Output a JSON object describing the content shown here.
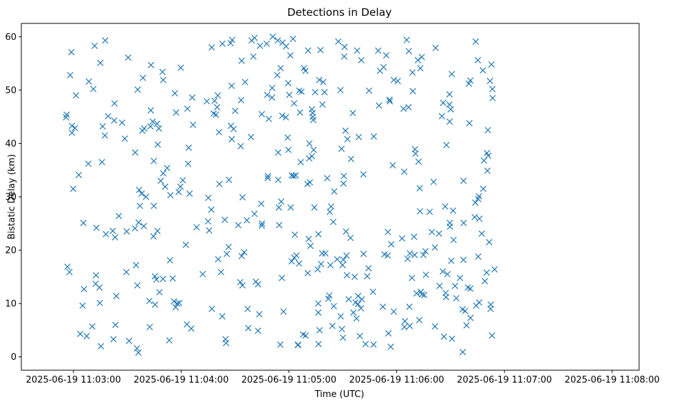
{
  "chart_data": {
    "type": "scatter",
    "title": "Detections in Delay",
    "xlabel": "Time (UTC)",
    "ylabel": "Bistatic Delay (km)",
    "x_unit": "seconds",
    "x_ticks": [
      {
        "value": 0,
        "label": "2025-06-19 11:03:00"
      },
      {
        "value": 60,
        "label": "2025-06-19 11:04:00"
      },
      {
        "value": 120,
        "label": "2025-06-19 11:05:00"
      },
      {
        "value": 180,
        "label": "2025-06-19 11:06:00"
      },
      {
        "value": 240,
        "label": "2025-06-19 11:07:00"
      },
      {
        "value": 300,
        "label": "2025-06-19 11:08:00"
      }
    ],
    "y_ticks": [
      0,
      10,
      20,
      30,
      40,
      50,
      60
    ],
    "xlim": [
      -29,
      315
    ],
    "ylim": [
      -2.5,
      62.5
    ],
    "marker": "x",
    "color": "#1f77b4",
    "grid": false,
    "points": [
      [
        -4.1,
        44.9
      ],
      [
        -3.8,
        45.4
      ],
      [
        -3.3,
        16.9
      ],
      [
        -2.2,
        15.9
      ],
      [
        -1.8,
        52.8
      ],
      [
        -1.1,
        57.1
      ],
      [
        -0.8,
        42.0
      ],
      [
        -0.8,
        43.3
      ],
      [
        -0.1,
        31.5
      ],
      [
        0.9,
        42.9
      ],
      [
        1.4,
        49.0
      ],
      [
        3.0,
        34.1
      ],
      [
        3.8,
        4.3
      ],
      [
        5.1,
        9.6
      ],
      [
        5.6,
        25.1
      ],
      [
        5.9,
        12.7
      ],
      [
        7.4,
        3.9
      ],
      [
        8.3,
        36.2
      ],
      [
        8.6,
        51.6
      ],
      [
        10.5,
        5.7
      ],
      [
        11.1,
        50.2
      ],
      [
        11.8,
        58.3
      ],
      [
        12.4,
        13.7
      ],
      [
        12.6,
        15.3
      ],
      [
        12.8,
        24.2
      ],
      [
        14.5,
        13.0
      ],
      [
        14.7,
        10.1
      ],
      [
        15.0,
        55.1
      ],
      [
        15.3,
        2.0
      ],
      [
        15.9,
        36.5
      ],
      [
        16.3,
        43.2
      ],
      [
        17.5,
        41.5
      ],
      [
        17.7,
        59.3
      ],
      [
        18.1,
        23.0
      ],
      [
        19.3,
        45.1
      ],
      [
        21.9,
        23.6
      ],
      [
        22.3,
        3.3
      ],
      [
        22.7,
        44.3
      ],
      [
        22.9,
        47.5
      ],
      [
        23.2,
        22.4
      ],
      [
        23.4,
        6.0
      ],
      [
        23.9,
        11.4
      ],
      [
        25.3,
        26.4
      ],
      [
        27.1,
        43.9
      ],
      [
        28.6,
        40.9
      ],
      [
        29.5,
        15.9
      ],
      [
        29.7,
        23.5
      ],
      [
        30.5,
        56.1
      ],
      [
        31.0,
        3.0
      ],
      [
        34.3,
        24.1
      ],
      [
        34.4,
        38.3
      ],
      [
        34.9,
        17.2
      ],
      [
        35.4,
        1.6
      ],
      [
        35.6,
        13.4
      ],
      [
        35.8,
        50.1
      ],
      [
        36.2,
        0.8
      ],
      [
        36.3,
        25.2
      ],
      [
        36.6,
        31.3
      ],
      [
        37.0,
        28.3
      ],
      [
        38.0,
        30.6
      ],
      [
        38.4,
        42.4
      ],
      [
        38.7,
        52.3
      ],
      [
        39.2,
        24.5
      ],
      [
        39.4,
        42.8
      ],
      [
        40.4,
        30.0
      ],
      [
        42.3,
        10.5
      ],
      [
        42.5,
        5.6
      ],
      [
        42.9,
        43.2
      ],
      [
        43.1,
        46.2
      ],
      [
        43.2,
        54.7
      ],
      [
        44.1,
        44.1
      ],
      [
        44.6,
        22.6
      ],
      [
        44.8,
        36.7
      ],
      [
        44.8,
        28.3
      ],
      [
        45.4,
        15.1
      ],
      [
        45.5,
        9.8
      ],
      [
        46.2,
        14.5
      ],
      [
        46.6,
        43.7
      ],
      [
        46.8,
        23.6
      ],
      [
        47.0,
        39.8
      ],
      [
        47.6,
        42.8
      ],
      [
        47.9,
        12.1
      ],
      [
        48.6,
        33.0
      ],
      [
        49.6,
        53.4
      ],
      [
        49.9,
        14.6
      ],
      [
        50.0,
        51.9
      ],
      [
        50.0,
        34.4
      ],
      [
        51.1,
        31.9
      ],
      [
        52.2,
        35.4
      ],
      [
        53.4,
        3.1
      ],
      [
        53.8,
        18.1
      ],
      [
        54.0,
        30.3
      ],
      [
        55.3,
        14.7
      ],
      [
        56.0,
        10.4
      ],
      [
        56.5,
        49.4
      ],
      [
        56.9,
        9.3
      ],
      [
        57.2,
        45.8
      ],
      [
        57.8,
        10.0
      ],
      [
        58.6,
        30.9
      ],
      [
        58.9,
        10.1
      ],
      [
        59.6,
        31.9
      ],
      [
        59.8,
        54.2
      ],
      [
        60.9,
        33.1
      ],
      [
        62.6,
        21.0
      ],
      [
        63.2,
        6.1
      ],
      [
        63.5,
        46.5
      ],
      [
        63.9,
        36.2
      ],
      [
        64.2,
        39.2
      ],
      [
        64.7,
        30.6
      ],
      [
        65.6,
        5.3
      ],
      [
        66.2,
        48.6
      ],
      [
        66.6,
        43.5
      ],
      [
        68.6,
        24.3
      ],
      [
        72.0,
        15.5
      ],
      [
        74.3,
        47.9
      ],
      [
        75.0,
        25.4
      ],
      [
        75.1,
        29.8
      ],
      [
        75.6,
        23.7
      ],
      [
        76.8,
        27.6
      ],
      [
        77.0,
        58.0
      ],
      [
        77.1,
        9.0
      ],
      [
        78.1,
        45.6
      ],
      [
        78.6,
        48.0
      ],
      [
        79.4,
        45.4
      ],
      [
        80.0,
        46.8
      ],
      [
        80.4,
        49.0
      ],
      [
        80.6,
        18.3
      ],
      [
        81.1,
        42.1
      ],
      [
        81.3,
        32.4
      ],
      [
        82.2,
        15.9
      ],
      [
        82.9,
        7.6
      ],
      [
        83.0,
        58.7
      ],
      [
        84.3,
        25.7
      ],
      [
        84.7,
        3.3
      ],
      [
        85.0,
        2.6
      ],
      [
        85.4,
        19.3
      ],
      [
        86.4,
        20.6
      ],
      [
        86.6,
        33.2
      ],
      [
        87.5,
        58.8
      ],
      [
        87.7,
        43.3
      ],
      [
        88.1,
        50.8
      ],
      [
        88.2,
        40.8
      ],
      [
        88.4,
        59.4
      ],
      [
        89.2,
        42.7
      ],
      [
        90.1,
        46.1
      ],
      [
        91.8,
        24.7
      ],
      [
        92.9,
        14.0
      ],
      [
        93.2,
        39.5
      ],
      [
        93.4,
        48.1
      ],
      [
        93.7,
        55.5
      ],
      [
        93.7,
        18.9
      ],
      [
        94.1,
        13.4
      ],
      [
        94.2,
        29.9
      ],
      [
        95.1,
        19.6
      ],
      [
        95.6,
        51.5
      ],
      [
        96.6,
        25.6
      ],
      [
        97.0,
        9.0
      ],
      [
        97.4,
        5.4
      ],
      [
        98.9,
        41.2
      ],
      [
        99.2,
        59.3
      ],
      [
        100.2,
        56.3
      ],
      [
        100.8,
        26.8
      ],
      [
        100.9,
        59.8
      ],
      [
        101.6,
        14.1
      ],
      [
        102.8,
        13.6
      ],
      [
        102.8,
        4.9
      ],
      [
        103.5,
        8.0
      ],
      [
        103.9,
        58.3
      ],
      [
        104.6,
        28.7
      ],
      [
        104.9,
        24.6
      ],
      [
        104.9,
        45.5
      ],
      [
        105.0,
        25.0
      ],
      [
        107.6,
        58.7
      ],
      [
        107.9,
        49.1
      ],
      [
        108.2,
        33.5
      ],
      [
        108.3,
        33.9
      ],
      [
        108.8,
        44.6
      ],
      [
        110.6,
        48.6
      ],
      [
        110.7,
        50.4
      ],
      [
        111.0,
        60.0
      ],
      [
        113.5,
        52.8
      ],
      [
        113.8,
        59.3
      ],
      [
        114.0,
        38.3
      ],
      [
        114.0,
        33.2
      ],
      [
        114.4,
        28.0
      ],
      [
        114.6,
        24.7
      ],
      [
        115.2,
        2.3
      ],
      [
        115.4,
        54.1
      ],
      [
        115.7,
        29.1
      ],
      [
        116.1,
        14.8
      ],
      [
        116.3,
        45.2
      ],
      [
        116.5,
        58.9
      ],
      [
        117.0,
        8.5
      ],
      [
        118.3,
        44.9
      ],
      [
        118.4,
        58.2
      ],
      [
        119.3,
        41.1
      ],
      [
        119.6,
        51.3
      ],
      [
        119.7,
        38.8
      ],
      [
        120.2,
        49.1
      ],
      [
        120.8,
        56.5
      ],
      [
        121.0,
        28.0
      ],
      [
        121.5,
        17.9
      ],
      [
        121.6,
        34.0
      ],
      [
        122.3,
        59.6
      ],
      [
        122.6,
        33.9
      ],
      [
        122.9,
        47.5
      ],
      [
        123.0,
        18.6
      ],
      [
        123.3,
        22.9
      ],
      [
        123.8,
        34.0
      ],
      [
        124.2,
        19.0
      ],
      [
        125.0,
        2.2
      ],
      [
        125.1,
        2.3
      ],
      [
        125.7,
        17.5
      ],
      [
        125.8,
        49.9
      ],
      [
        126.2,
        45.8
      ],
      [
        126.6,
        36.5
      ],
      [
        127.0,
        49.7
      ],
      [
        127.9,
        4.2
      ],
      [
        128.4,
        54.1
      ],
      [
        129.2,
        53.6
      ],
      [
        129.3,
        4.0
      ],
      [
        130.3,
        32.4
      ],
      [
        130.5,
        15.7
      ],
      [
        130.7,
        57.4
      ],
      [
        131.0,
        22.1
      ],
      [
        131.3,
        37.2
      ],
      [
        131.4,
        40.0
      ],
      [
        131.7,
        32.7
      ],
      [
        132.0,
        20.8
      ],
      [
        132.8,
        37.6
      ],
      [
        132.8,
        46.4
      ],
      [
        133.2,
        45.7
      ],
      [
        133.3,
        45.0
      ],
      [
        133.6,
        44.4
      ],
      [
        133.8,
        38.8
      ],
      [
        134.2,
        28.0
      ],
      [
        134.6,
        49.6
      ],
      [
        136.0,
        16.4
      ],
      [
        136.3,
        10.0
      ],
      [
        136.4,
        8.3
      ],
      [
        136.4,
        23.0
      ],
      [
        136.5,
        2.4
      ],
      [
        136.9,
        51.9
      ],
      [
        137.1,
        5.0
      ],
      [
        137.6,
        57.5
      ],
      [
        137.9,
        17.4
      ],
      [
        138.5,
        19.4
      ],
      [
        138.7,
        47.3
      ],
      [
        139.1,
        51.5
      ],
      [
        139.8,
        49.6
      ],
      [
        140.3,
        19.4
      ],
      [
        141.3,
        33.5
      ],
      [
        142.0,
        10.9
      ],
      [
        142.5,
        11.5
      ],
      [
        142.8,
        27.2
      ],
      [
        143.1,
        17.2
      ],
      [
        143.5,
        28.2
      ],
      [
        144.2,
        5.8
      ],
      [
        144.7,
        25.3
      ],
      [
        145.0,
        9.5
      ],
      [
        145.2,
        31.0
      ],
      [
        146.9,
        18.3
      ],
      [
        147.5,
        59.1
      ],
      [
        148.7,
        50.0
      ],
      [
        148.8,
        7.6
      ],
      [
        149.3,
        39.0
      ],
      [
        149.5,
        5.2
      ],
      [
        149.9,
        17.2
      ],
      [
        150.1,
        3.6
      ],
      [
        150.4,
        32.5
      ],
      [
        150.4,
        18.2
      ],
      [
        150.6,
        33.9
      ],
      [
        150.8,
        56.3
      ],
      [
        151.0,
        58.1
      ],
      [
        151.5,
        42.4
      ],
      [
        151.8,
        23.5
      ],
      [
        152.1,
        19.0
      ],
      [
        152.3,
        15.3
      ],
      [
        152.6,
        40.8
      ],
      [
        153.3,
        10.8
      ],
      [
        154.3,
        22.3
      ],
      [
        154.6,
        37.1
      ],
      [
        155.6,
        45.7
      ],
      [
        155.9,
        8.3
      ],
      [
        156.6,
        15.0
      ],
      [
        157.1,
        10.2
      ],
      [
        157.6,
        7.2
      ],
      [
        158.0,
        57.4
      ],
      [
        158.5,
        9.9
      ],
      [
        158.5,
        11.4
      ],
      [
        158.9,
        41.2
      ],
      [
        159.5,
        3.9
      ],
      [
        160.1,
        9.1
      ],
      [
        160.3,
        55.6
      ],
      [
        160.6,
        10.8
      ],
      [
        161.5,
        34.2
      ],
      [
        161.6,
        19.3
      ],
      [
        162.7,
        2.4
      ],
      [
        163.6,
        15.1
      ],
      [
        164.3,
        16.6
      ],
      [
        164.6,
        49.9
      ],
      [
        166.8,
        12.2
      ],
      [
        167.1,
        2.3
      ],
      [
        167.3,
        41.3
      ],
      [
        169.7,
        57.4
      ],
      [
        170.2,
        47.1
      ],
      [
        170.7,
        53.6
      ],
      [
        172.3,
        9.4
      ],
      [
        172.7,
        54.3
      ],
      [
        173.2,
        19.2
      ],
      [
        174.2,
        56.5
      ],
      [
        175.0,
        19.0
      ],
      [
        175.1,
        23.4
      ],
      [
        175.4,
        4.4
      ],
      [
        176.0,
        48.2
      ],
      [
        176.2,
        47.9
      ],
      [
        176.7,
        1.9
      ],
      [
        177.0,
        21.1
      ],
      [
        177.8,
        35.9
      ],
      [
        178.4,
        8.5
      ],
      [
        178.4,
        51.9
      ],
      [
        180.6,
        51.7
      ],
      [
        183.0,
        22.2
      ],
      [
        183.8,
        46.5
      ],
      [
        184.2,
        34.7
      ],
      [
        184.3,
        5.6
      ],
      [
        184.6,
        6.7
      ],
      [
        185.6,
        59.4
      ],
      [
        186.1,
        18.4
      ],
      [
        186.6,
        46.8
      ],
      [
        186.8,
        57.3
      ],
      [
        187.1,
        9.4
      ],
      [
        187.3,
        5.8
      ],
      [
        187.4,
        19.4
      ],
      [
        188.5,
        14.8
      ],
      [
        188.8,
        53.3
      ],
      [
        189.0,
        49.8
      ],
      [
        189.7,
        22.5
      ],
      [
        190.0,
        19.1
      ],
      [
        190.2,
        38.9
      ],
      [
        190.5,
        38.1
      ],
      [
        191.1,
        11.9
      ],
      [
        191.8,
        55.6
      ],
      [
        192.2,
        36.6
      ],
      [
        192.6,
        6.9
      ],
      [
        192.8,
        31.6
      ],
      [
        193.0,
        27.3
      ],
      [
        193.2,
        54.1
      ],
      [
        193.5,
        12.2
      ],
      [
        194.0,
        56.2
      ],
      [
        194.1,
        11.7
      ],
      [
        194.9,
        19.1
      ],
      [
        195.3,
        11.6
      ],
      [
        196.0,
        19.8
      ],
      [
        196.3,
        15.4
      ],
      [
        198.4,
        27.2
      ],
      [
        199.6,
        23.4
      ],
      [
        200.6,
        32.8
      ],
      [
        201.3,
        20.5
      ],
      [
        201.3,
        5.7
      ],
      [
        201.7,
        57.9
      ],
      [
        203.6,
        23.1
      ],
      [
        203.9,
        13.3
      ],
      [
        205.2,
        45.1
      ],
      [
        205.7,
        16.0
      ],
      [
        205.9,
        47.6
      ],
      [
        206.3,
        3.8
      ],
      [
        207.0,
        28.2
      ],
      [
        207.3,
        12.0
      ],
      [
        207.5,
        11.2
      ],
      [
        207.7,
        39.7
      ],
      [
        208.3,
        15.5
      ],
      [
        209.4,
        49.2
      ],
      [
        209.4,
        47.3
      ],
      [
        209.5,
        44.1
      ],
      [
        209.6,
        25.1
      ],
      [
        209.7,
        24.4
      ],
      [
        210.1,
        46.4
      ],
      [
        210.4,
        18.0
      ],
      [
        210.7,
        53.0
      ],
      [
        210.8,
        3.4
      ],
      [
        211.4,
        27.4
      ],
      [
        211.7,
        21.9
      ],
      [
        212.5,
        13.3
      ],
      [
        213.2,
        11.0
      ],
      [
        215.3,
        14.8
      ],
      [
        216.7,
        8.9
      ],
      [
        216.8,
        0.9
      ],
      [
        217.2,
        33.0
      ],
      [
        217.2,
        18.2
      ],
      [
        217.3,
        25.1
      ],
      [
        218.1,
        8.6
      ],
      [
        218.9,
        5.9
      ],
      [
        219.6,
        13.0
      ],
      [
        220.2,
        51.2
      ],
      [
        220.5,
        43.8
      ],
      [
        221.0,
        51.8
      ],
      [
        221.0,
        12.8
      ],
      [
        221.1,
        7.3
      ],
      [
        223.4,
        26.2
      ],
      [
        223.8,
        28.9
      ],
      [
        224.0,
        59.1
      ],
      [
        224.3,
        9.6
      ],
      [
        225.2,
        55.6
      ],
      [
        225.4,
        29.6
      ],
      [
        225.4,
        18.8
      ],
      [
        225.8,
        30.1
      ],
      [
        225.9,
        10.2
      ],
      [
        226.1,
        25.9
      ],
      [
        227.4,
        23.1
      ],
      [
        228.0,
        53.7
      ],
      [
        228.2,
        31.5
      ],
      [
        228.6,
        36.8
      ],
      [
        229.1,
        14.2
      ],
      [
        230.1,
        15.8
      ],
      [
        230.3,
        38.2
      ],
      [
        230.5,
        34.9
      ],
      [
        230.8,
        42.5
      ],
      [
        231.0,
        37.7
      ],
      [
        231.5,
        21.5
      ],
      [
        232.0,
        51.7
      ],
      [
        232.3,
        9.0
      ],
      [
        232.4,
        9.8
      ],
      [
        232.8,
        54.8
      ],
      [
        233.1,
        4.0
      ],
      [
        233.3,
        50.2
      ],
      [
        233.4,
        48.5
      ],
      [
        234.5,
        16.4
      ]
    ]
  }
}
